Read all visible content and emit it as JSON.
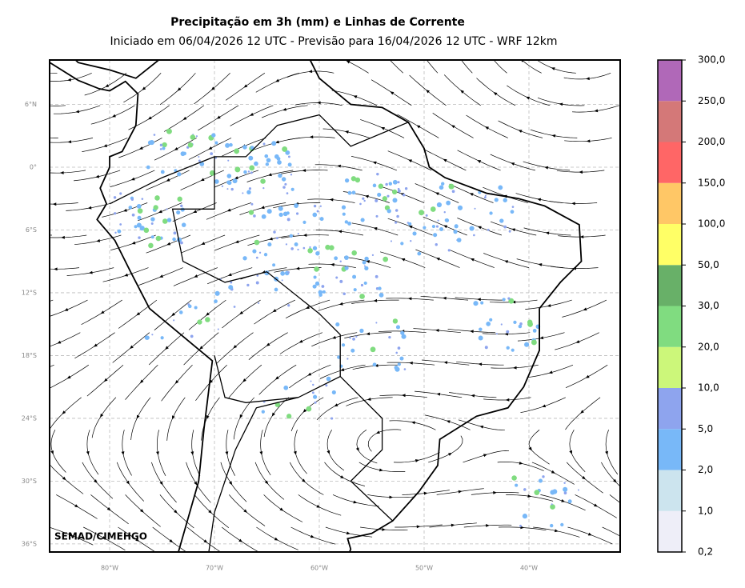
{
  "header": {
    "title": "Precipitação em 3h (mm) e Linhas de Corrente",
    "subtitle": "Iniciado em 06/04/2026 12 UTC - Previsão para 16/04/2026 12 UTC - WRF 12km"
  },
  "map": {
    "lat_ticks": [
      {
        "value": 6,
        "label": "6°N"
      },
      {
        "value": 0,
        "label": "0°"
      },
      {
        "value": -6,
        "label": "6°S"
      },
      {
        "value": -12,
        "label": "12°S"
      },
      {
        "value": -18,
        "label": "18°S"
      },
      {
        "value": -24,
        "label": "24°S"
      },
      {
        "value": -30,
        "label": "30°S"
      },
      {
        "value": -36,
        "label": "36°S"
      }
    ],
    "lon_ticks": [
      {
        "value": -80,
        "label": "80°W"
      },
      {
        "value": -70,
        "label": "70°W"
      },
      {
        "value": -60,
        "label": "60°W"
      },
      {
        "value": -50,
        "label": "50°W"
      },
      {
        "value": -40,
        "label": "40°W"
      }
    ],
    "credit": "SEMAD/CIMEHGO"
  },
  "colorbar": {
    "levels": [
      {
        "value": 0.2,
        "label": "0,2"
      },
      {
        "value": 1,
        "label": "1,0"
      },
      {
        "value": 2,
        "label": "2,0"
      },
      {
        "value": 5,
        "label": "5,0"
      },
      {
        "value": 10,
        "label": "10,0"
      },
      {
        "value": 20,
        "label": "20,0"
      },
      {
        "value": 30,
        "label": "30,0"
      },
      {
        "value": 50,
        "label": "50,0"
      },
      {
        "value": 100,
        "label": "100,0"
      },
      {
        "value": 150,
        "label": "150,0"
      },
      {
        "value": 200,
        "label": "200,0"
      },
      {
        "value": 250,
        "label": "250,0"
      },
      {
        "value": 300,
        "label": "300,0"
      }
    ],
    "colors": [
      "#eeeef8",
      "#cce4ee",
      "#78b8f8",
      "#8ea4ee",
      "#ccf77a",
      "#80dc80",
      "#68b068",
      "#ffff66",
      "#ffc766",
      "#ff6666",
      "#d47878",
      "#b068b8"
    ]
  }
}
